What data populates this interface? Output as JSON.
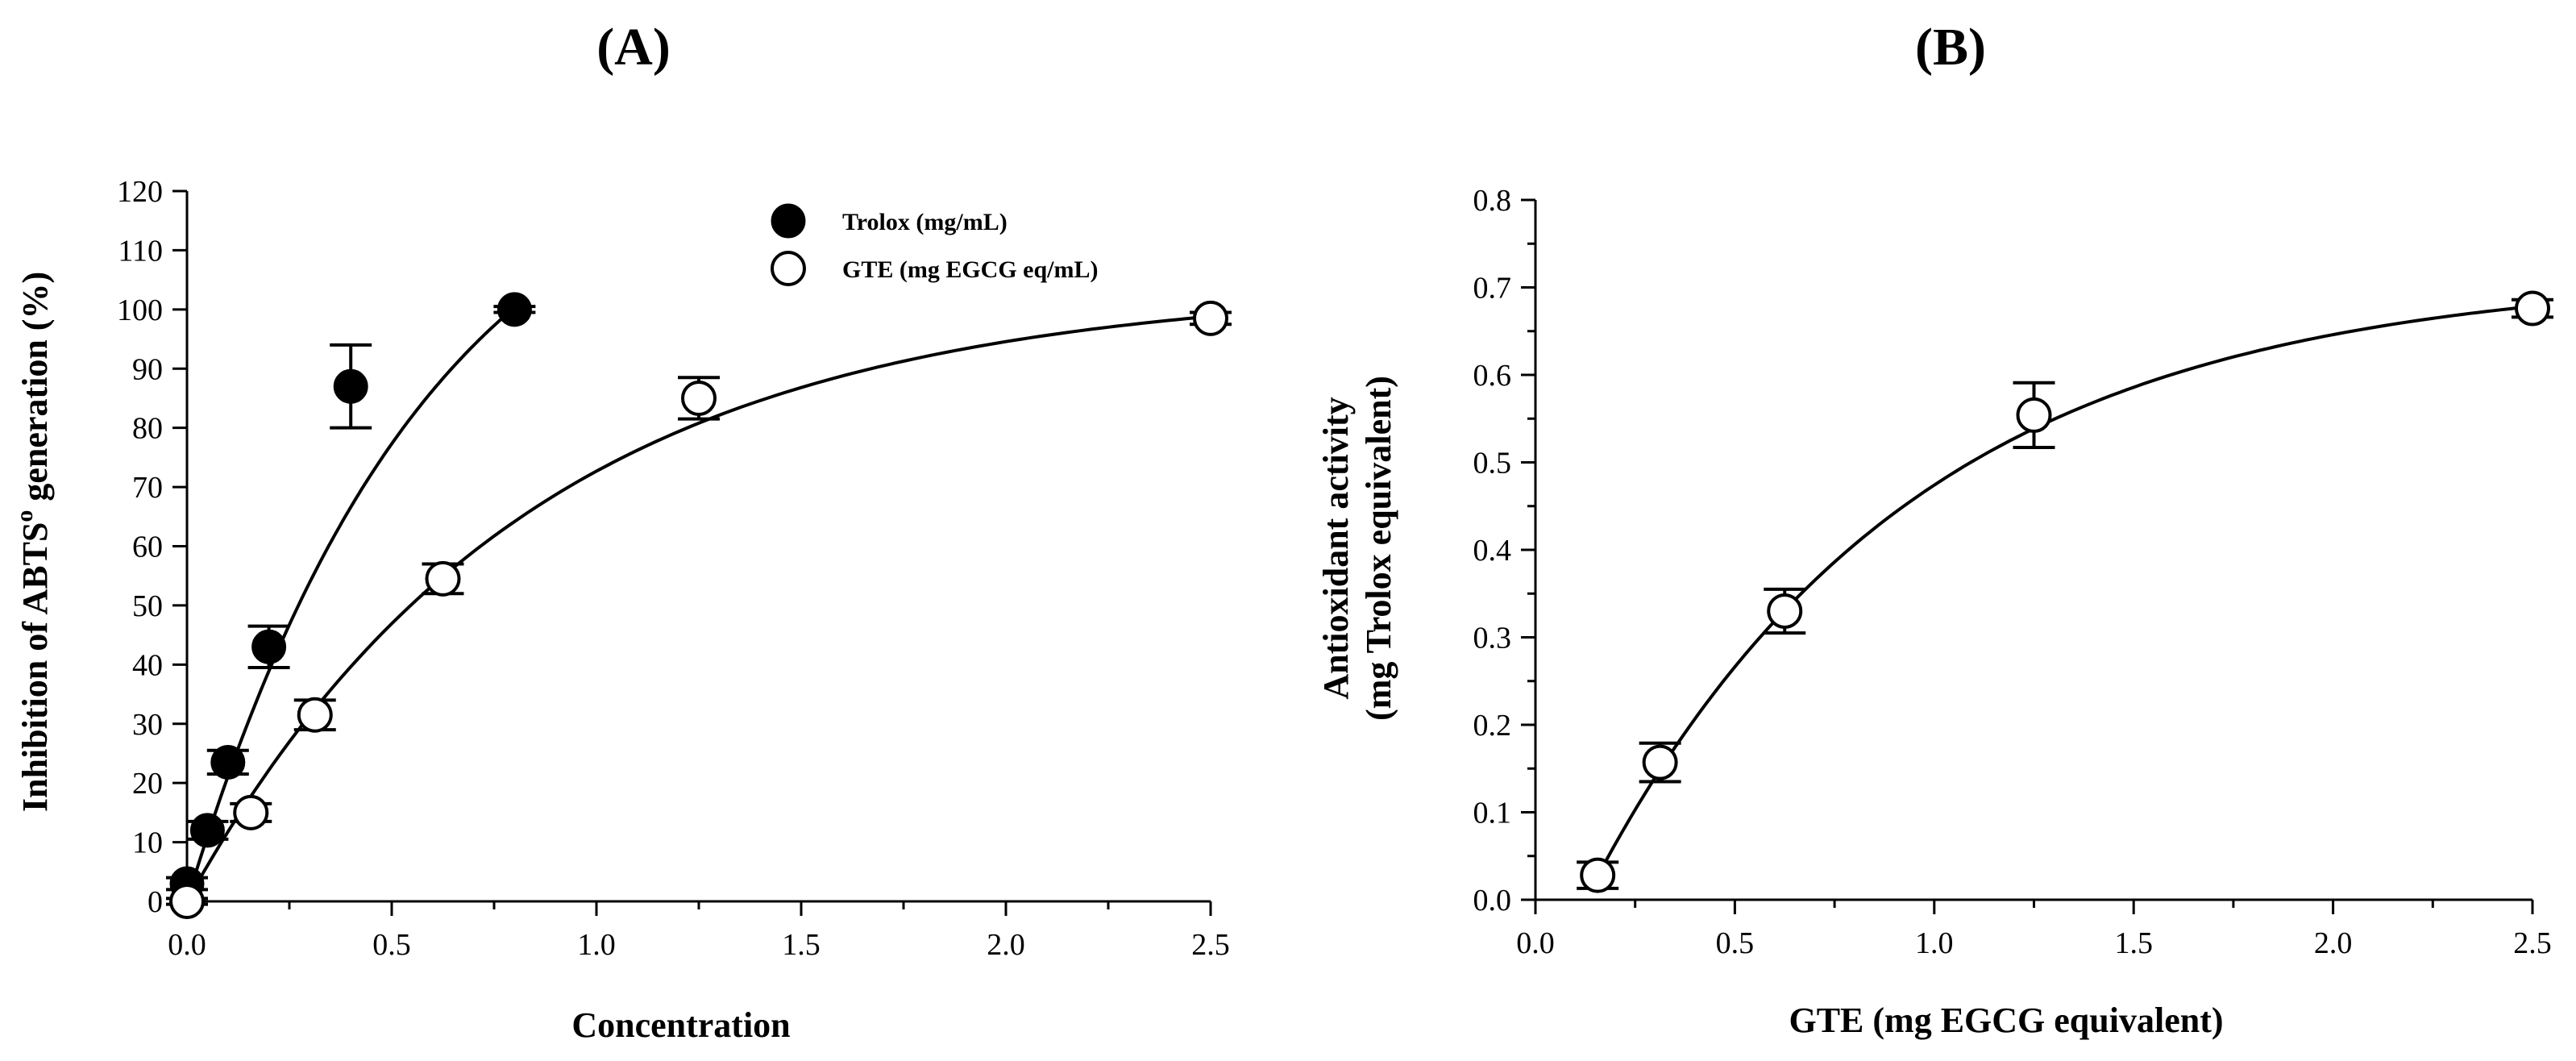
{
  "chart_data": [
    {
      "panel": "(A)",
      "type": "scatter",
      "xlabel": "Concentration",
      "ylabel": "Inhibition of ABTS",
      "ylabel_sup": "o",
      "ylabel_suffix": " generation (%)",
      "xlim": [
        0,
        2.5
      ],
      "ylim": [
        0,
        120
      ],
      "xticks": [
        "0.0",
        "0.5",
        "1.0",
        "1.5",
        "2.0",
        "2.5"
      ],
      "yticks": [
        "0",
        "10",
        "20",
        "30",
        "40",
        "50",
        "60",
        "70",
        "80",
        "90",
        "100",
        "110",
        "120"
      ],
      "legend_position": "top-right",
      "series": [
        {
          "name": "Trolox (mg/mL)",
          "marker": "filled-circle",
          "x": [
            0.0,
            0.05,
            0.1,
            0.2,
            0.4,
            0.8
          ],
          "y": [
            3,
            12,
            23.5,
            43,
            87,
            100
          ],
          "err": [
            1,
            1.5,
            2,
            3.5,
            7,
            0.5
          ],
          "fit": {
            "a": 135,
            "k": 1.7,
            "xmax": 0.8
          }
        },
        {
          "name": "GTE (mg EGCG eq/mL)",
          "marker": "open-circle",
          "x": [
            0.0,
            0.156,
            0.3125,
            0.625,
            1.25,
            2.5
          ],
          "y": [
            0,
            15,
            31.5,
            54.5,
            85,
            98.5
          ],
          "err": [
            0.5,
            1.5,
            2.5,
            2.5,
            3.5,
            1
          ],
          "fit": {
            "a": 104,
            "k": 1.2,
            "xmax": 2.5
          }
        }
      ]
    },
    {
      "panel": "(B)",
      "type": "scatter",
      "xlabel": "GTE (mg EGCG equivalent)",
      "ylabel_line1": "Antioxidant activity",
      "ylabel_line2": "(mg Trolox equivalent)",
      "xlim": [
        0,
        2.5
      ],
      "ylim": [
        0,
        0.8
      ],
      "xticks": [
        "0.0",
        "0.5",
        "1.0",
        "1.5",
        "2.0",
        "2.5"
      ],
      "yticks": [
        "0.0",
        "0.1",
        "0.2",
        "0.3",
        "0.4",
        "0.5",
        "0.6",
        "0.7",
        "0.8"
      ],
      "series": [
        {
          "name": "GTE",
          "marker": "open-circle",
          "x": [
            0.156,
            0.3125,
            0.625,
            1.25,
            2.5
          ],
          "y": [
            0.028,
            0.157,
            0.33,
            0.554,
            0.676
          ],
          "err": [
            0.015,
            0.022,
            0.025,
            0.037,
            0.01
          ],
          "fit": {
            "a": 0.716,
            "k": 1.24,
            "x0": 0.125,
            "xmax": 2.5
          }
        }
      ]
    }
  ]
}
